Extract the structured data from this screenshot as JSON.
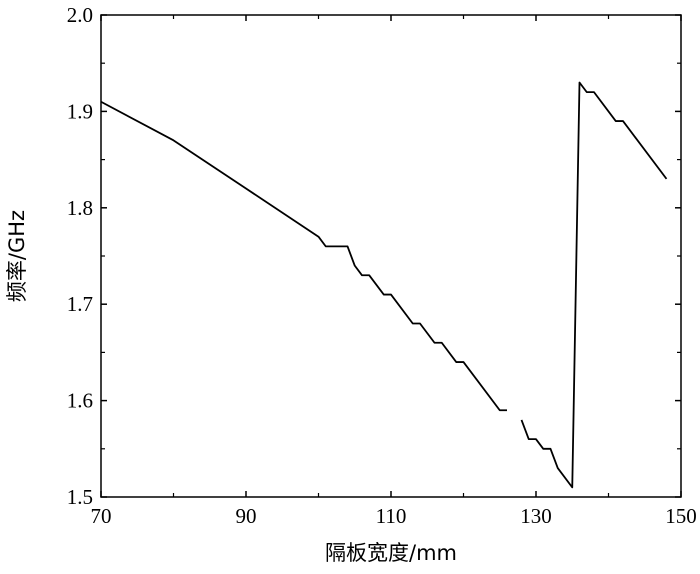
{
  "chart_data": {
    "type": "line",
    "title": "",
    "xlabel": "隔板宽度/mm",
    "ylabel": "频率/GHz",
    "xlim": [
      70,
      150
    ],
    "ylim": [
      1.5,
      2.0
    ],
    "x_ticks": [
      70,
      90,
      110,
      130,
      150
    ],
    "x_tick_labels": [
      "70",
      "90",
      "110",
      "130",
      "150"
    ],
    "y_ticks": [
      1.5,
      1.6,
      1.7,
      1.8,
      1.9,
      2.0
    ],
    "y_tick_labels": [
      "1.5",
      "1.6",
      "1.7",
      "1.8",
      "1.9",
      "2.0"
    ],
    "grid": false,
    "legend": "none",
    "line_color": "#000000",
    "series": [
      {
        "segments": [
          [
            [
              70,
              1.91
            ],
            [
              80,
              1.87
            ],
            [
              90,
              1.82
            ],
            [
              100,
              1.77
            ],
            [
              101,
              1.76
            ],
            [
              102,
              1.76
            ],
            [
              104,
              1.76
            ],
            [
              105,
              1.74
            ],
            [
              106,
              1.73
            ],
            [
              107,
              1.73
            ],
            [
              109,
              1.71
            ],
            [
              110,
              1.71
            ],
            [
              113,
              1.68
            ],
            [
              114,
              1.68
            ],
            [
              116,
              1.66
            ],
            [
              117,
              1.66
            ],
            [
              119,
              1.64
            ],
            [
              120,
              1.64
            ],
            [
              125,
              1.59
            ],
            [
              126,
              1.59
            ]
          ],
          [
            [
              128,
              1.58
            ],
            [
              129,
              1.56
            ],
            [
              130,
              1.56
            ],
            [
              131,
              1.55
            ],
            [
              132,
              1.55
            ],
            [
              133,
              1.53
            ],
            [
              135,
              1.51
            ],
            [
              136,
              1.93
            ],
            [
              137,
              1.92
            ],
            [
              138,
              1.92
            ],
            [
              141,
              1.89
            ],
            [
              142,
              1.89
            ],
            [
              148,
              1.83
            ]
          ]
        ]
      }
    ]
  }
}
